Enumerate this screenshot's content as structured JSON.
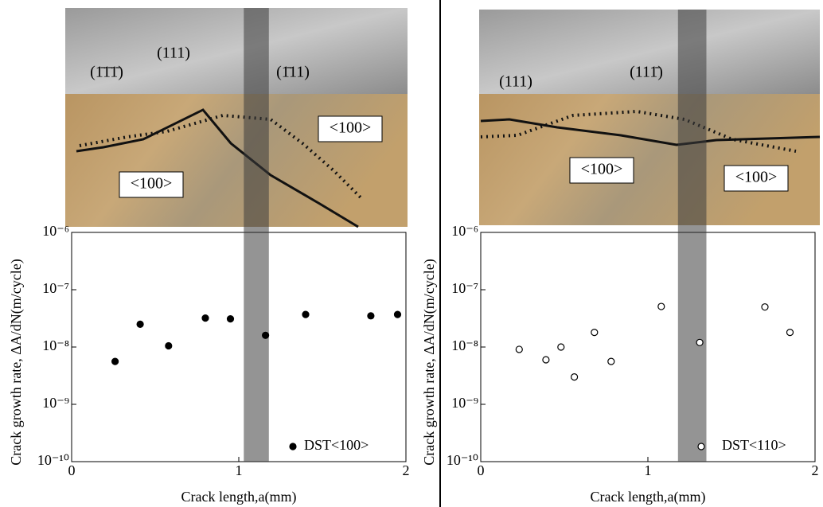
{
  "chart_data": [
    {
      "type": "scatter",
      "yscale": "log",
      "xlabel": "Crack length,a(mm)",
      "ylabel": "Crack growth rate, ΔA/dN(m/cycle)",
      "xlim": [
        0,
        2
      ],
      "xticks": [
        0,
        1,
        2
      ],
      "ylim": [
        1e-10,
        1e-06
      ],
      "yticks": [
        {
          "value": 1e-10,
          "label": "10⁻¹⁰"
        },
        {
          "value": 1e-09,
          "label": "10⁻⁹"
        },
        {
          "value": 1e-08,
          "label": "10⁻⁸"
        },
        {
          "value": 1e-07,
          "label": "10⁻⁷"
        },
        {
          "value": 1e-06,
          "label": "10⁻⁶"
        }
      ],
      "highlight": [
        1.03,
        1.18
      ],
      "annotations": [
        "(1̄1̄1̄)",
        "(111)",
        "(1̄11)",
        "<100>",
        "<100>"
      ],
      "series": [
        {
          "name": "DST<100>",
          "color": "#000000",
          "marker": "filled",
          "x": [
            0.26,
            0.41,
            0.58,
            0.8,
            0.95,
            1.16,
            1.4,
            1.79,
            1.95
          ],
          "values": [
            5.6e-09,
            2.5e-08,
            1.05e-08,
            3.2e-08,
            3.1e-08,
            1.6e-08,
            3.7e-08,
            3.5e-08,
            3.7e-08
          ]
        }
      ]
    },
    {
      "type": "scatter",
      "yscale": "log",
      "xlabel": "Crack length,a(mm)",
      "ylabel": "Crack growth rate, ΔA/dN(m/cycle)",
      "xlim": [
        0,
        2
      ],
      "xticks": [
        0,
        1,
        2
      ],
      "ylim": [
        1e-10,
        1e-06
      ],
      "yticks": [
        {
          "value": 1e-10,
          "label": "10⁻¹⁰"
        },
        {
          "value": 1e-09,
          "label": "10⁻⁹"
        },
        {
          "value": 1e-08,
          "label": "10⁻⁸"
        },
        {
          "value": 1e-07,
          "label": "10⁻⁷"
        },
        {
          "value": 1e-06,
          "label": "10⁻⁶"
        }
      ],
      "highlight": [
        1.18,
        1.35
      ],
      "annotations": [
        "(111)",
        "(111̄)",
        "<100>",
        "<100>"
      ],
      "series": [
        {
          "name": "DST<110>",
          "color": "#000000",
          "marker": "open",
          "x": [
            0.23,
            0.39,
            0.48,
            0.56,
            0.68,
            0.78,
            1.08,
            1.31,
            1.7,
            1.85
          ],
          "values": [
            9.1e-09,
            6e-09,
            1e-08,
            3e-09,
            1.8e-08,
            5.6e-09,
            5.1e-08,
            1.2e-08,
            5e-08,
            1.8e-08
          ]
        }
      ]
    }
  ]
}
